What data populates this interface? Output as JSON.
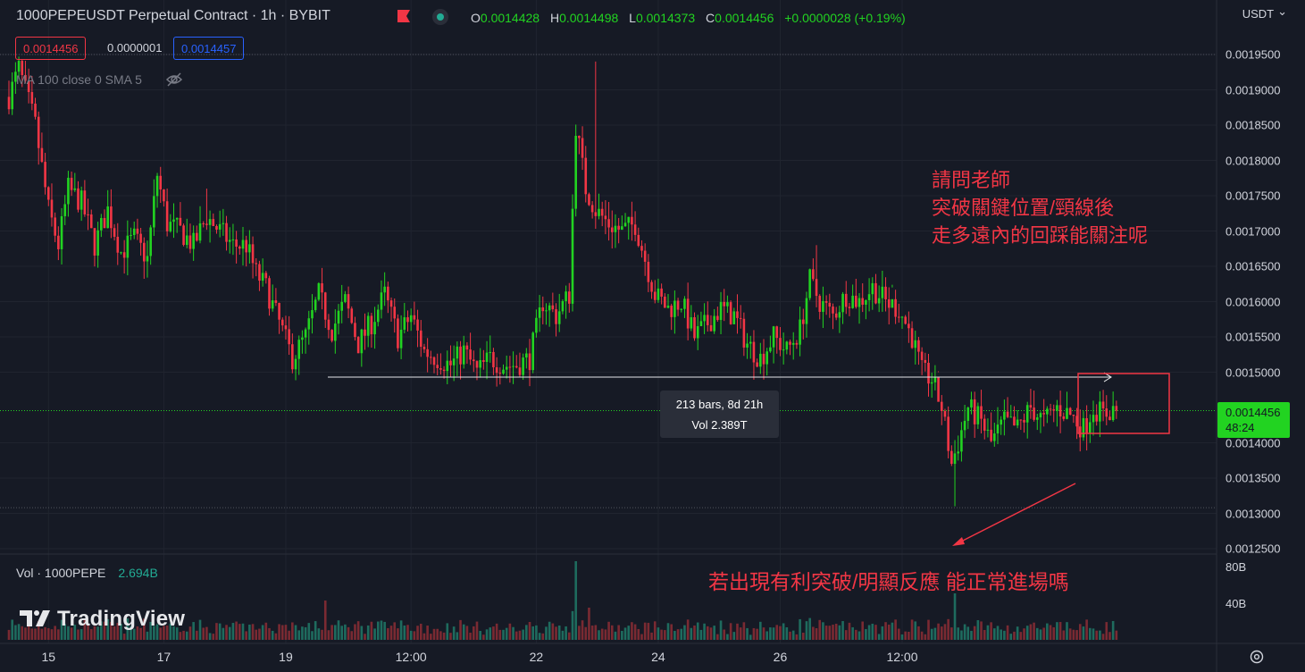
{
  "header": {
    "title": "1000PEPEUSDT Perpetual Contract · 1h · BYBIT",
    "ohlc": {
      "o_label": "O",
      "o": "0.0014428",
      "h_label": "H",
      "h": "0.0014498",
      "l_label": "L",
      "l": "0.0014373",
      "c_label": "C",
      "c": "0.0014456",
      "change": "+0.0000028 (+0.19%)"
    }
  },
  "trade": {
    "sell_price": "0.0014456",
    "spread": "0.0000001",
    "buy_price": "0.0014457"
  },
  "indicator_label": "MA 100 close 0 SMA 5",
  "currency": "USDT",
  "price_axis": {
    "ticks": [
      "0.0019500",
      "0.0019000",
      "0.0018500",
      "0.0018000",
      "0.0017500",
      "0.0017000",
      "0.0016500",
      "0.0016000",
      "0.0015500",
      "0.0015000",
      "0.0014000",
      "0.0013500",
      "0.0013000",
      "0.0012500"
    ],
    "tick_values": [
      0.00195,
      0.0019,
      0.00185,
      0.0018,
      0.00175,
      0.0017,
      0.00165,
      0.0016,
      0.00155,
      0.0015,
      0.0014,
      0.00135,
      0.0013,
      0.00125
    ],
    "current_price": "0.0014456",
    "countdown": "48:24"
  },
  "time_axis": {
    "labels": [
      "15",
      "17",
      "19",
      "12:00",
      "22",
      "24",
      "26",
      "12:00"
    ]
  },
  "measure_tooltip": {
    "bars": "213 bars, 8d 21h",
    "vol": "Vol 2.389T"
  },
  "annotations": {
    "question_lines": [
      "請問老師",
      "突破關鍵位置/頸線後",
      "走多遠內的回踩能關注呢"
    ],
    "question_bottom": "若出現有利突破/明顯反應 能正常進場嗎"
  },
  "volume": {
    "label": "Vol · 1000PEPE",
    "value": "2.694B",
    "axis": [
      "80B",
      "40B"
    ]
  },
  "brand": "TradingView",
  "colors": {
    "up": "#22d321",
    "down": "#f23645",
    "background": "#161a25",
    "annotation": "#f23645",
    "vol_up": "#1e6b5e",
    "vol_down": "#7a2a32"
  },
  "chart_data": {
    "type": "candlestick",
    "symbol": "1000PEPEUSDT",
    "interval": "1h",
    "ylim": [
      0.00125,
      0.00195
    ],
    "key_level": 0.001493,
    "neckline_low": 0.001308,
    "last_price": 0.0014456,
    "waypoints": [
      [
        0,
        0.00189
      ],
      [
        3,
        0.00193
      ],
      [
        8,
        0.00185
      ],
      [
        12,
        0.00173
      ],
      [
        15,
        0.00168
      ],
      [
        18,
        0.00176
      ],
      [
        22,
        0.00174
      ],
      [
        26,
        0.00168
      ],
      [
        30,
        0.00173
      ],
      [
        34,
        0.00167
      ],
      [
        38,
        0.00169
      ],
      [
        42,
        0.00166
      ],
      [
        45,
        0.00178
      ],
      [
        48,
        0.00171
      ],
      [
        52,
        0.0017
      ],
      [
        56,
        0.00168
      ],
      [
        60,
        0.00172
      ],
      [
        64,
        0.0017
      ],
      [
        68,
        0.00168
      ],
      [
        72,
        0.00168
      ],
      [
        75,
        0.00164
      ],
      [
        78,
        0.00162
      ],
      [
        82,
        0.00157
      ],
      [
        86,
        0.00152
      ],
      [
        90,
        0.00155
      ],
      [
        94,
        0.00161
      ],
      [
        98,
        0.00156
      ],
      [
        102,
        0.0016
      ],
      [
        106,
        0.00154
      ],
      [
        110,
        0.00157
      ],
      [
        114,
        0.00161
      ],
      [
        118,
        0.00155
      ],
      [
        122,
        0.00158
      ],
      [
        126,
        0.00153
      ],
      [
        130,
        0.00152
      ],
      [
        134,
        0.00151
      ],
      [
        138,
        0.00153
      ],
      [
        142,
        0.0015
      ],
      [
        146,
        0.00152
      ],
      [
        150,
        0.00151
      ],
      [
        154,
        0.00151
      ],
      [
        158,
        0.00152
      ],
      [
        162,
        0.0016
      ],
      [
        166,
        0.00158
      ],
      [
        170,
        0.00161
      ],
      [
        172,
        0.00185
      ],
      [
        175,
        0.00176
      ],
      [
        178,
        0.00173
      ],
      [
        182,
        0.00171
      ],
      [
        186,
        0.0017
      ],
      [
        190,
        0.00171
      ],
      [
        193,
        0.00166
      ],
      [
        196,
        0.00161
      ],
      [
        200,
        0.00159
      ],
      [
        204,
        0.0016
      ],
      [
        208,
        0.00155
      ],
      [
        212,
        0.00157
      ],
      [
        216,
        0.00159
      ],
      [
        220,
        0.00158
      ],
      [
        224,
        0.00154
      ],
      [
        228,
        0.00152
      ],
      [
        232,
        0.00155
      ],
      [
        236,
        0.00153
      ],
      [
        240,
        0.00156
      ],
      [
        243,
        0.00163
      ],
      [
        246,
        0.0016
      ],
      [
        250,
        0.00158
      ],
      [
        254,
        0.00161
      ],
      [
        258,
        0.0016
      ],
      [
        262,
        0.00162
      ],
      [
        266,
        0.0016
      ],
      [
        270,
        0.00159
      ],
      [
        274,
        0.00155
      ],
      [
        277,
        0.0015
      ],
      [
        280,
        0.00149
      ],
      [
        283,
        0.00145
      ],
      [
        286,
        0.00137
      ],
      [
        288,
        0.0014
      ],
      [
        291,
        0.00145
      ],
      [
        295,
        0.00143
      ],
      [
        298,
        0.0014
      ],
      [
        302,
        0.00143
      ],
      [
        306,
        0.00142
      ],
      [
        310,
        0.00145
      ],
      [
        314,
        0.00143
      ],
      [
        318,
        0.00145
      ],
      [
        322,
        0.00144
      ],
      [
        326,
        0.00142
      ],
      [
        329,
        0.00145
      ],
      [
        332,
        0.00144
      ],
      [
        336,
        0.00145
      ]
    ],
    "spikes": [
      [
        178,
        0.00194
      ],
      [
        245,
        0.00168
      ],
      [
        287,
        0.00131
      ],
      [
        268,
        0.00162
      ],
      [
        60,
        0.00176
      ],
      [
        282,
        0.0015
      ]
    ],
    "time_ticks": [
      [
        "15",
        12
      ],
      [
        "17",
        47
      ],
      [
        "19",
        84
      ],
      [
        "12:00",
        122
      ],
      [
        "22",
        160
      ],
      [
        "24",
        197
      ],
      [
        "26",
        234
      ],
      [
        "12:00",
        271
      ]
    ]
  }
}
